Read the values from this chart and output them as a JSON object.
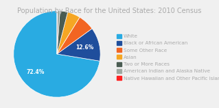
{
  "title": "Population by Race for the United States: 2010 Census",
  "title_fontsize": 7.0,
  "title_color": "#aaaaaa",
  "labels": [
    "White",
    "Black or African American",
    "Some Other Race",
    "Asian",
    "Two or More Races",
    "American Indian and Alaska Native",
    "Native Hawaiian and Other Pacific Islander"
  ],
  "values": [
    72.4,
    12.6,
    6.2,
    4.8,
    2.9,
    0.9,
    0.2
  ],
  "colors": [
    "#29ABE2",
    "#1F4E9C",
    "#F26522",
    "#F5A623",
    "#4A5C52",
    "#9EA8A0",
    "#FF2020"
  ],
  "background_color": "#f0f0f0",
  "legend_fontsize": 5.2,
  "legend_text_color": "#aaaaaa",
  "pct_white": "72.4%",
  "pct_black": "12.6%"
}
